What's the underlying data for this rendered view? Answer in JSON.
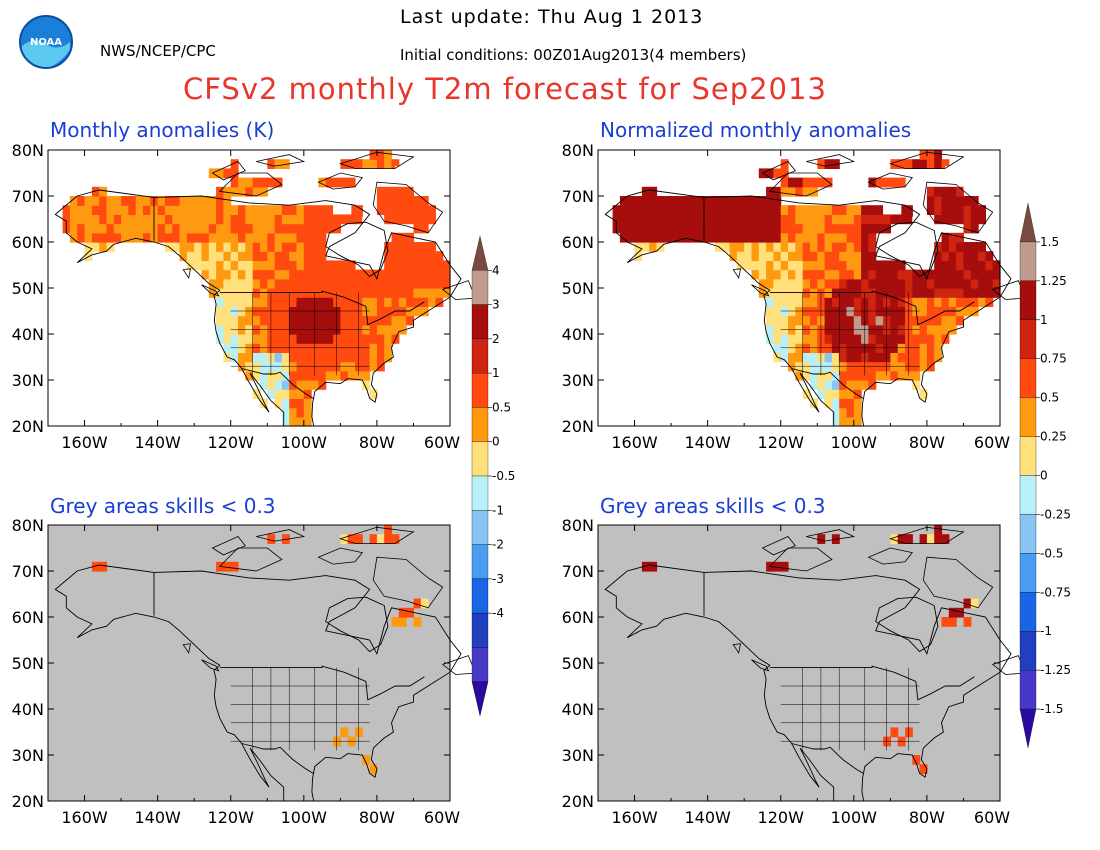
{
  "header": {
    "org": "NWS/NCEP/CPC",
    "last_update": "Last update: Thu Aug 1 2013",
    "initial_conditions": "Initial conditions: 00Z01Aug2013(4 members)",
    "title": "CFSv2 monthly T2m forecast for Sep2013",
    "logo_text": "NOAA"
  },
  "panels": [
    {
      "id": "tl",
      "title": "Monthly anomalies (K)"
    },
    {
      "id": "tr",
      "title": "Normalized monthly anomalies"
    },
    {
      "id": "bl",
      "title": "Grey areas skills < 0.3"
    },
    {
      "id": "br",
      "title": "Grey areas skills < 0.3"
    }
  ],
  "axes": {
    "lat_labels": [
      "80N",
      "70N",
      "60N",
      "50N",
      "40N",
      "30N",
      "20N"
    ],
    "lon_labels": [
      "160W",
      "140W",
      "120W",
      "100W",
      "80W",
      "60W"
    ]
  },
  "legend_left": {
    "labels": [
      "4",
      "3",
      "2",
      "1",
      "0.5",
      "0",
      "-0.5",
      "-1",
      "-2",
      "-3",
      "-4"
    ],
    "colors": [
      "#7a4a40",
      "#c09a8c",
      "#a60d0d",
      "#cf2410",
      "#ff4a10",
      "#ff9a10",
      "#ffe07a",
      "#b8f0f8",
      "#88c4f4",
      "#4a9cf0",
      "#1a64e6",
      "#2040c0",
      "#4838c8",
      "#2a0aa0"
    ]
  },
  "legend_right": {
    "labels": [
      "1.5",
      "1.25",
      "1",
      "0.75",
      "0.5",
      "0.25",
      "0",
      "-0.25",
      "-0.5",
      "-0.75",
      "-1",
      "-1.25",
      "-1.5"
    ],
    "colors": [
      "#7a4a40",
      "#c09a8c",
      "#a60d0d",
      "#cf2410",
      "#ff4a10",
      "#ff9a10",
      "#ffe07a",
      "#b8f0f8",
      "#88c4f4",
      "#4a9cf0",
      "#1a64e6",
      "#2040c0",
      "#4838c8",
      "#2a0aa0"
    ]
  },
  "colors": {
    "title_red": "#e8362c",
    "panel_title_blue": "#1a3fd0",
    "grey_mask": "#c0c0c0"
  }
}
